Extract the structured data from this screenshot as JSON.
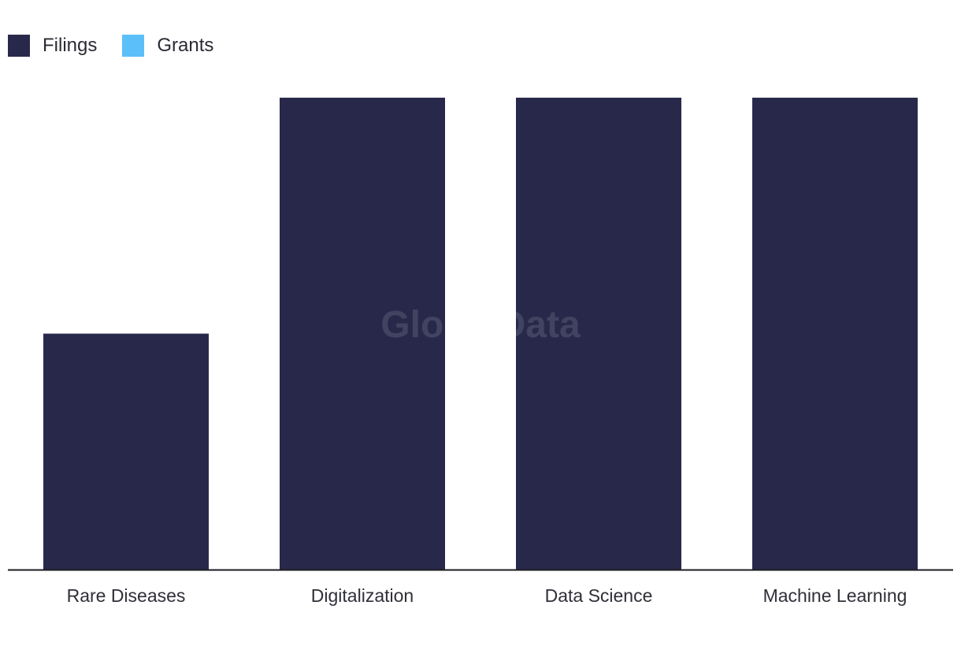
{
  "chart_data": {
    "type": "bar",
    "categories": [
      "Rare Diseases",
      "Digitalization",
      "Data Science",
      "Machine Learning"
    ],
    "series": [
      {
        "name": "Filings",
        "values": [
          1,
          2,
          2,
          2
        ],
        "color": "#28294a"
      },
      {
        "name": "Grants",
        "values": [
          0,
          0,
          0,
          0
        ],
        "color": "#5bc0f8"
      }
    ],
    "ylim": [
      0,
      2
    ],
    "grid": false,
    "legend_position": "top-left",
    "watermark": "GlobalData"
  }
}
